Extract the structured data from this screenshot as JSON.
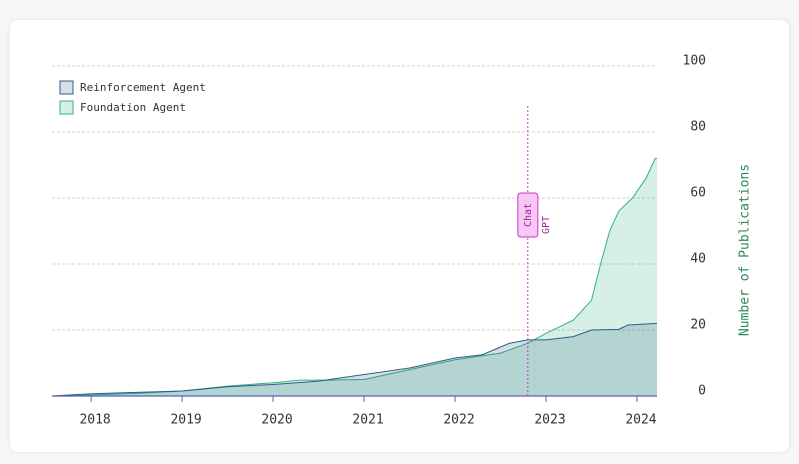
{
  "chart_data": {
    "type": "area",
    "ylabel": "Number of Publications",
    "xlim": [
      2017.57,
      2024.22
    ],
    "ylim": [
      0,
      100
    ],
    "xticks": [
      2018,
      2019,
      2020,
      2021,
      2022,
      2023,
      2024
    ],
    "yticks": [
      0,
      20,
      40,
      60,
      80,
      100
    ],
    "grid": true,
    "legend": "upper left",
    "series": [
      {
        "name": "Foundation Agent",
        "color": "#34b27b",
        "x": [
          2017.57,
          2018,
          2018.5,
          2019,
          2019.5,
          2020,
          2020.3,
          2020.6,
          2021,
          2021.5,
          2022,
          2022.5,
          2022.8,
          2023,
          2023.3,
          2023.5,
          2023.6,
          2023.7,
          2023.8,
          2023.95,
          2024.1,
          2024.2,
          2024.22
        ],
        "values": [
          0,
          0.3,
          0.8,
          1.5,
          3,
          4,
          4.8,
          4.8,
          5,
          8,
          11,
          13,
          16,
          19,
          23,
          29,
          40,
          50,
          56,
          60,
          66,
          72,
          72
        ]
      },
      {
        "name": "Reinforcement Agent",
        "color": "#2f5d8a",
        "x": [
          2017.57,
          2018,
          2018.5,
          2019,
          2019.5,
          2020,
          2020.5,
          2021,
          2021.5,
          2022,
          2022.3,
          2022.6,
          2022.8,
          2023,
          2023.3,
          2023.5,
          2023.8,
          2023.9,
          2024.22
        ],
        "values": [
          0,
          0.7,
          1.1,
          1.5,
          2.8,
          3.5,
          4.5,
          6.5,
          8.5,
          11.5,
          12.5,
          16,
          17,
          17,
          18,
          20,
          20.2,
          21.5,
          22
        ]
      }
    ],
    "annotation": {
      "x": 2022.8,
      "lines": [
        "Chat",
        "GPT"
      ]
    }
  }
}
